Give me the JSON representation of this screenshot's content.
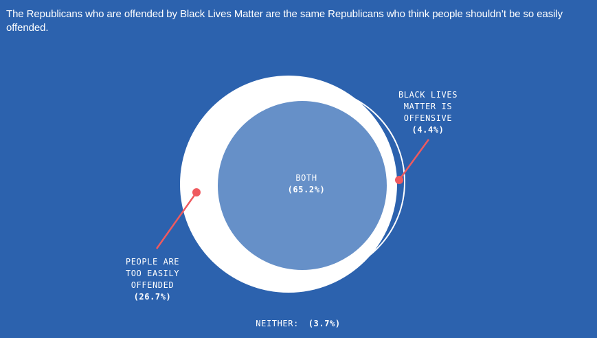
{
  "title": "The Republicans who are offended by Black Lives Matter are the same Republicans who think people shouldn’t be so easily offended.",
  "colors": {
    "background": "#2c62ae",
    "outer_circle": "#ffffff",
    "inner_circle": "#6690c8",
    "pointer": "#ef5a5f",
    "text": "#ffffff"
  },
  "chart_data": {
    "type": "venn",
    "sets": [
      {
        "id": "too_easily_offended",
        "label_lines": [
          "PEOPLE ARE",
          "TOO EASILY",
          "OFFENDED"
        ],
        "value_label": "(26.7%)",
        "value": 26.7
      },
      {
        "id": "blm_offensive",
        "label_lines": [
          "BLACK LIVES",
          "MATTER IS",
          "OFFENSIVE"
        ],
        "value_label": "(4.4%)",
        "value": 4.4
      }
    ],
    "intersection": {
      "label": "BOTH",
      "value_label": "(65.2%)",
      "value": 65.2
    },
    "neither": {
      "label": "NEITHER:",
      "value_label": "(3.7%)",
      "value": 3.7
    }
  }
}
